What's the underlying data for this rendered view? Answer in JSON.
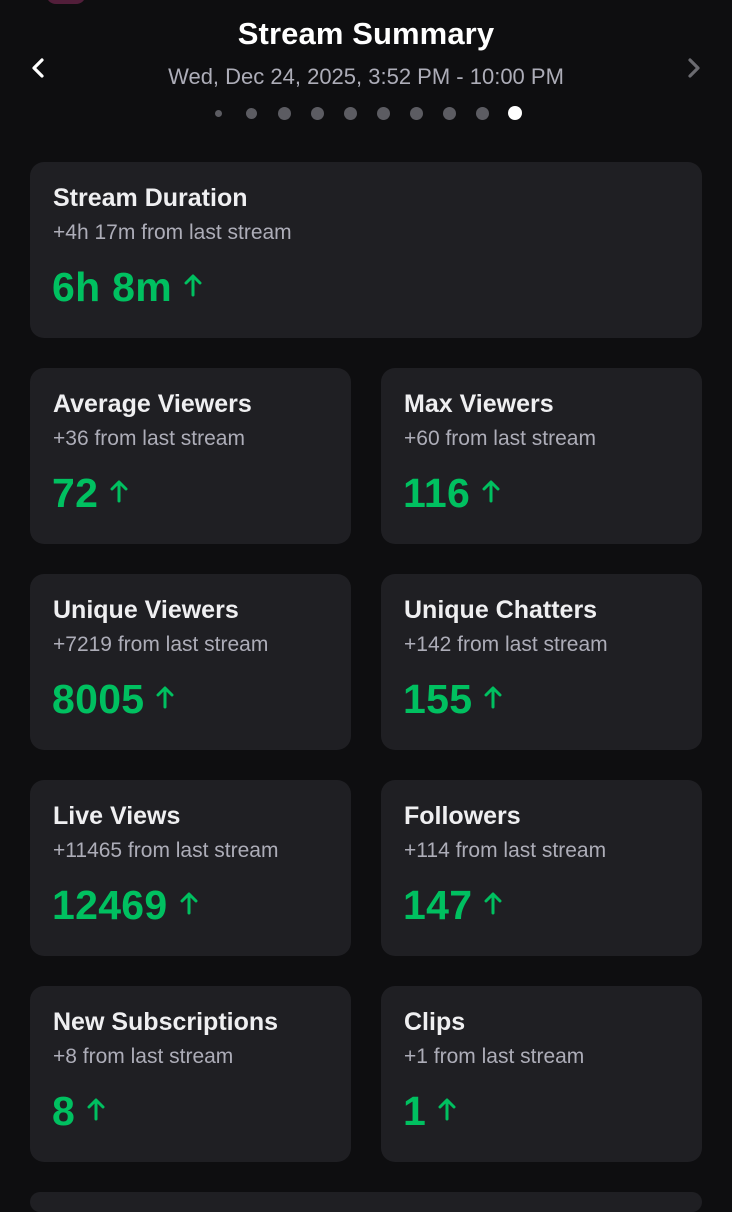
{
  "header": {
    "title": "Stream Summary",
    "date_range": "Wed, Dec 24, 2025, 3:52 PM - 10:00 PM",
    "page_count": 10,
    "active_page": 10
  },
  "colors": {
    "background": "#0e0e10",
    "card": "#1f1f23",
    "positive": "#00c060",
    "muted_text": "#adadb8"
  },
  "icons": {
    "prev": "chevron-left-icon",
    "next": "chevron-right-icon",
    "trend": "arrow-up-icon"
  },
  "cards": {
    "stream_duration": {
      "title": "Stream Duration",
      "delta": "+4h 17m from last stream",
      "value": "6h 8m"
    },
    "average_viewers": {
      "title": "Average Viewers",
      "delta": "+36 from last stream",
      "value": "72"
    },
    "max_viewers": {
      "title": "Max Viewers",
      "delta": "+60 from last stream",
      "value": "116"
    },
    "unique_viewers": {
      "title": "Unique Viewers",
      "delta": "+7219 from last stream",
      "value": "8005"
    },
    "unique_chatters": {
      "title": "Unique Chatters",
      "delta": "+142 from last stream",
      "value": "155"
    },
    "live_views": {
      "title": "Live Views",
      "delta": "+11465 from last stream",
      "value": "12469"
    },
    "followers": {
      "title": "Followers",
      "delta": "+114 from last stream",
      "value": "147"
    },
    "new_subscriptions": {
      "title": "New Subscriptions",
      "delta": "+8 from last stream",
      "value": "8"
    },
    "clips": {
      "title": "Clips",
      "delta": "+1 from last stream",
      "value": "1"
    }
  }
}
